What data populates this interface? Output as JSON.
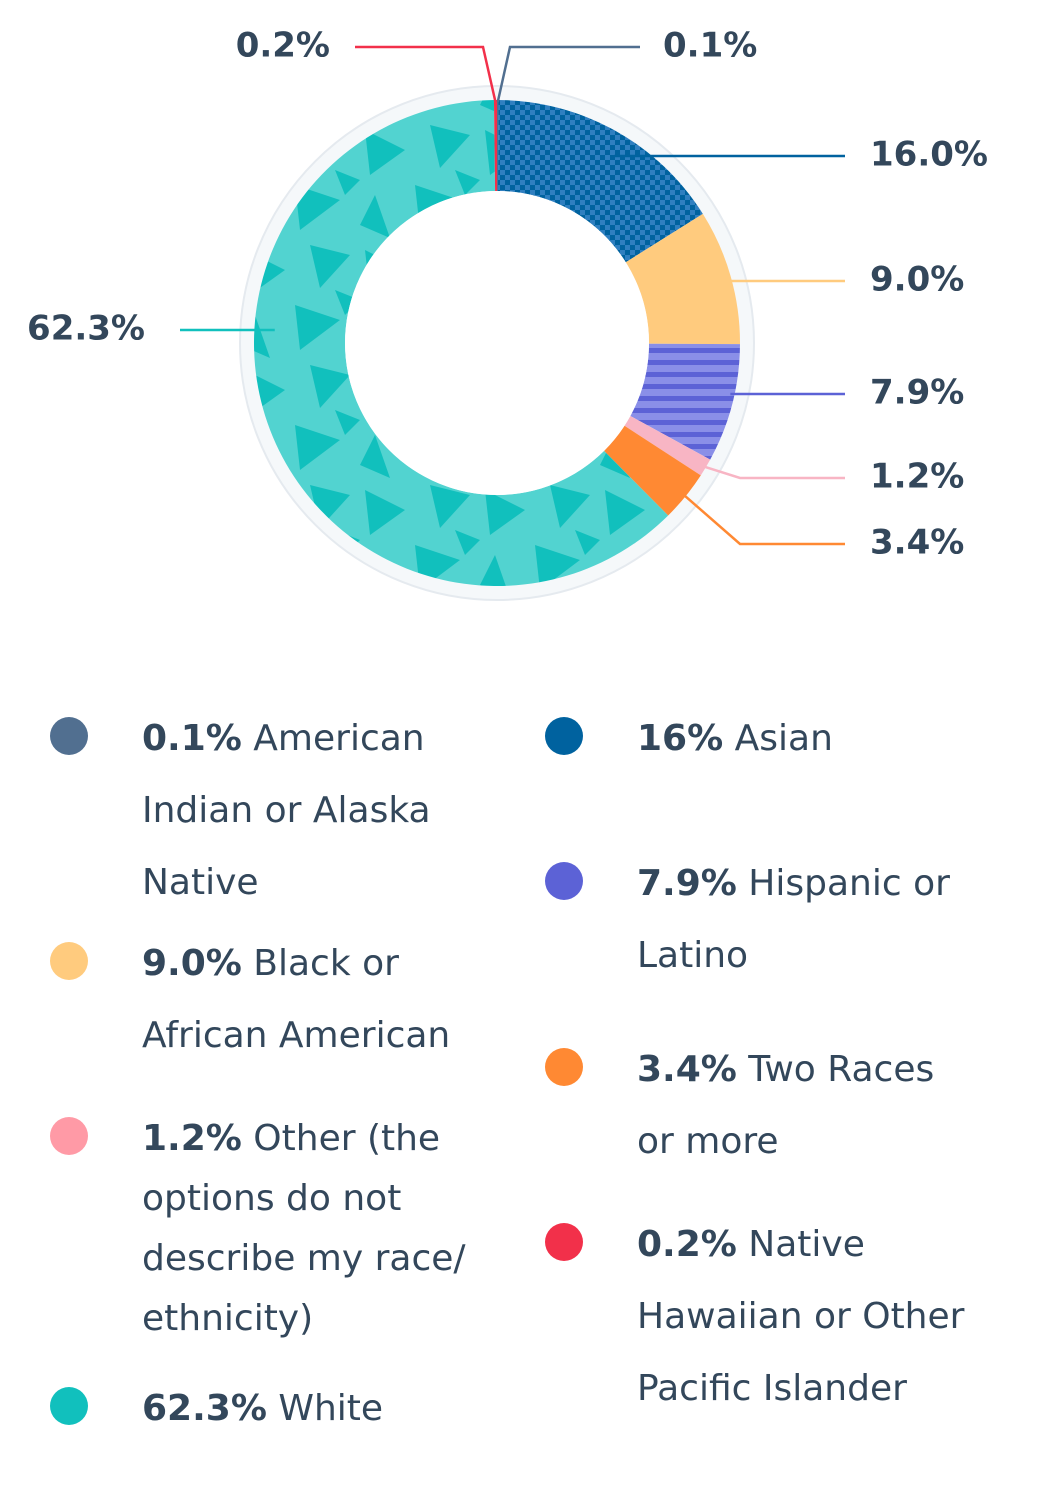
{
  "chart_data": {
    "type": "pie",
    "donut": true,
    "title": "",
    "slices": [
      {
        "key": "american-indian",
        "value": 0.1,
        "callout": "0.1%",
        "color": "#516f90"
      },
      {
        "key": "asian",
        "value": 16.0,
        "callout": "16.0%",
        "color": "#00629f"
      },
      {
        "key": "black",
        "value": 9.0,
        "callout": "9.0%",
        "color": "#ffcb7e"
      },
      {
        "key": "hispanic",
        "value": 7.9,
        "callout": "7.9%",
        "color": "#5c62d6"
      },
      {
        "key": "other",
        "value": 1.2,
        "callout": "1.2%",
        "color": "#f8b5c4"
      },
      {
        "key": "two-races",
        "value": 3.4,
        "callout": "3.4%",
        "color": "#ff8933"
      },
      {
        "key": "white",
        "value": 62.3,
        "callout": "62.3%",
        "color": "#11c0bd"
      },
      {
        "key": "native-hawaiian",
        "value": 0.2,
        "callout": "0.2%",
        "color": "#f2304a"
      }
    ]
  },
  "legend": [
    {
      "key": "american-indian",
      "pct": "0.1%",
      "label": "American Indian or Alaska Native",
      "color": "#516f90"
    },
    {
      "key": "asian",
      "pct": "16%",
      "label": "Asian",
      "color": "#00629f"
    },
    {
      "key": "black",
      "pct": "9.0%",
      "label": "Black or African American",
      "color": "#ffcb7e"
    },
    {
      "key": "hispanic",
      "pct": "7.9%",
      "label": "Hispanic or Latino",
      "color": "#5c62d6"
    },
    {
      "key": "other",
      "pct": "1.2%",
      "label": "Other (the options do not describe my race/ ethnicity)",
      "color": "#ff9aa6"
    },
    {
      "key": "two-races",
      "pct": "3.4%",
      "label": "Two Races or more",
      "color": "#ff8933"
    },
    {
      "key": "white",
      "pct": "62.3%",
      "label": "White",
      "color": "#11c0bd"
    },
    {
      "key": "native-hawaiian",
      "pct": "0.2%",
      "label": "Native Hawaiian or Other Pacific Islander",
      "color": "#f2304a"
    }
  ]
}
